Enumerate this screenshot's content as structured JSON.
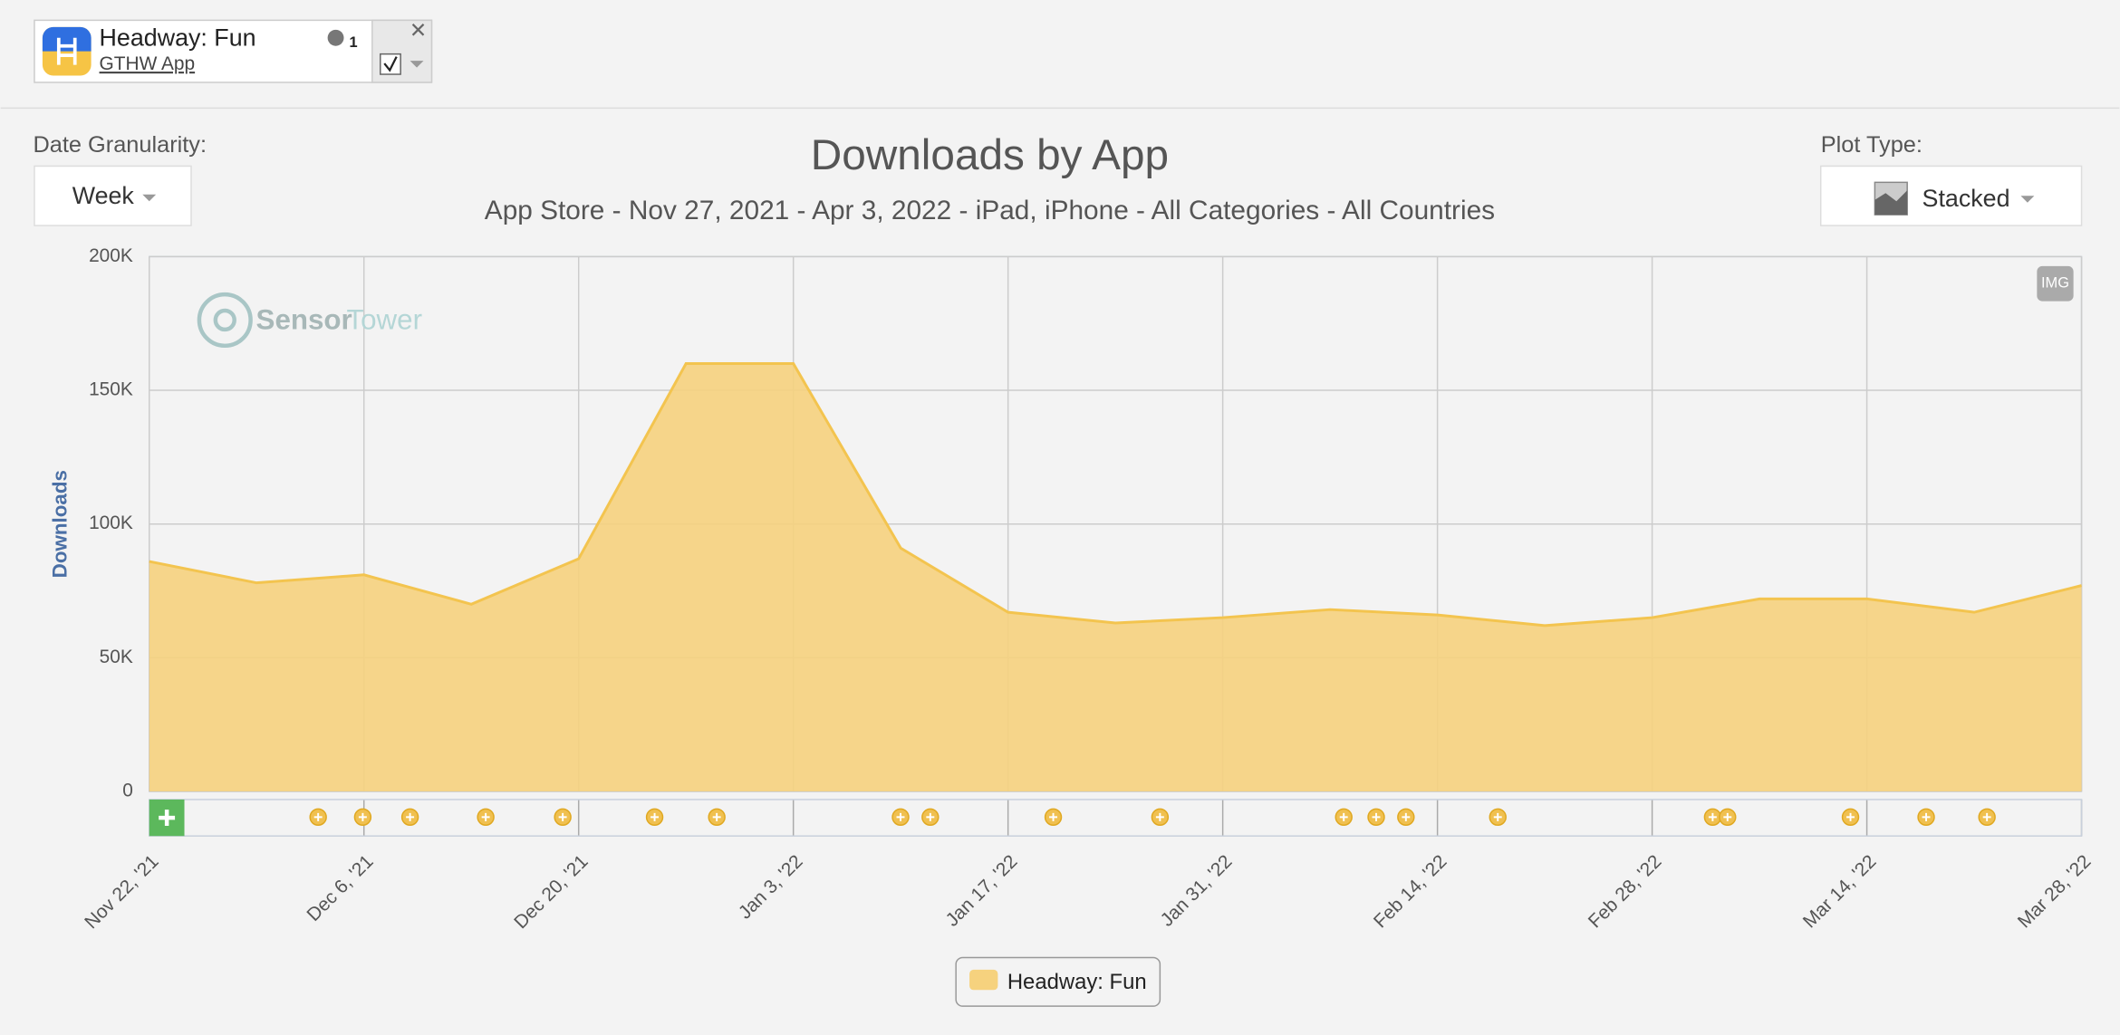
{
  "app_card": {
    "name": "Headway: Fun",
    "publisher": "GTHW App",
    "store_rank": "1"
  },
  "controls": {
    "granularity_label": "Date Granularity:",
    "granularity": "Week",
    "plot_type_label": "Plot Type:",
    "plot_type": "Stacked",
    "export": "IMG"
  },
  "watermark": {
    "part1": "Sensor",
    "part2": "Tower"
  },
  "chart_data": {
    "type": "area",
    "title": "Downloads by App",
    "subtitle": "App Store - Nov 27, 2021 - Apr 3, 2022 - iPad, iPhone - All Categories - All Countries",
    "y_label": "Downloads",
    "categories": [
      "Nov 22, '21",
      null,
      "Dec 6, '21",
      null,
      "Dec 20, '21",
      null,
      "Jan 3, '22",
      null,
      "Jan 17, '22",
      null,
      "Jan 31, '22",
      null,
      "Feb 14, '22",
      null,
      "Feb 28, '22",
      null,
      "Mar 14, '22",
      null,
      "Mar 28, '22"
    ],
    "series": [
      {
        "name": "Headway: Fun",
        "color": "#f6d27e",
        "values": [
          86000,
          78000,
          81000,
          70000,
          87000,
          160000,
          160000,
          91000,
          67000,
          63000,
          65000,
          68000,
          66000,
          62000,
          65000,
          72000,
          72000,
          67000,
          77000
        ]
      }
    ],
    "ylim": [
      0,
      200000
    ],
    "yticks": [
      0,
      {
        "value": 50000,
        "label": "50K"
      },
      {
        "value": 100000,
        "label": "100K"
      },
      {
        "value": 150000,
        "label": "150K"
      },
      {
        "value": 200000,
        "label": "200K"
      }
    ],
    "grid": true
  }
}
